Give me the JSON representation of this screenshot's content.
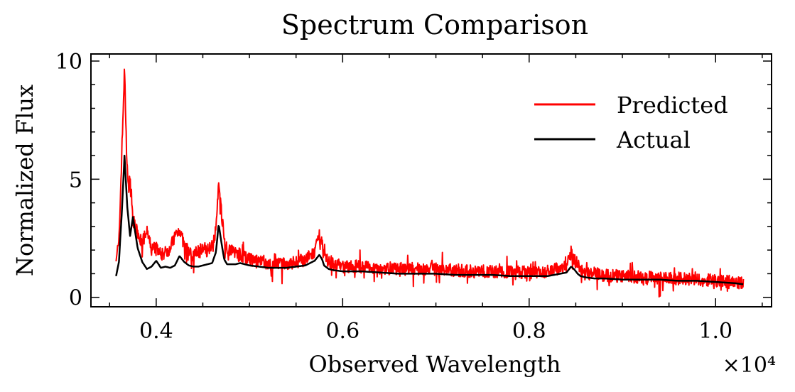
{
  "chart_data": {
    "type": "line",
    "title": "Spectrum Comparison",
    "xlabel": "Observed Wavelength",
    "ylabel": "Normalized Flux",
    "x_offset_label": "×10⁴",
    "xlim": [
      3300,
      10600
    ],
    "ylim": [
      -0.4,
      10.3
    ],
    "x_ticks": [
      4000,
      6000,
      8000,
      10000
    ],
    "x_tick_labels": [
      "0.4",
      "0.6",
      "0.8",
      "1.0"
    ],
    "y_ticks": [
      0,
      5,
      10
    ],
    "y_tick_labels": [
      "0",
      "5",
      "10"
    ],
    "grid": false,
    "legend": {
      "position": "top-right"
    },
    "series": [
      {
        "name": "Predicted",
        "color": "#ff0000",
        "x": [
          3570,
          3600,
          3630,
          3660,
          3680,
          3700,
          3720,
          3750,
          3800,
          3850,
          3900,
          3950,
          4000,
          4050,
          4100,
          4150,
          4200,
          4250,
          4300,
          4350,
          4400,
          4450,
          4500,
          4550,
          4600,
          4640,
          4670,
          4700,
          4730,
          4760,
          4800,
          4850,
          4900,
          4950,
          5000,
          5100,
          5200,
          5300,
          5400,
          5500,
          5600,
          5700,
          5750,
          5780,
          5800,
          5850,
          5900,
          6000,
          6200,
          6400,
          6600,
          6800,
          7000,
          7200,
          7400,
          7600,
          7800,
          8000,
          8200,
          8400,
          8450,
          8480,
          8520,
          8550,
          8600,
          8700,
          8800,
          9000,
          9200,
          9400,
          9600,
          9800,
          10000,
          10200,
          10300
        ],
        "y": [
          1.8,
          2.2,
          6.0,
          9.7,
          6.5,
          4.5,
          5.2,
          3.3,
          2.7,
          2.3,
          2.8,
          2.0,
          2.2,
          1.8,
          1.9,
          2.1,
          2.6,
          2.9,
          2.2,
          1.9,
          1.8,
          2.0,
          2.1,
          2.0,
          2.3,
          2.8,
          4.9,
          3.6,
          2.4,
          2.1,
          2.0,
          1.9,
          1.8,
          1.7,
          1.6,
          1.5,
          1.4,
          1.4,
          1.4,
          1.5,
          1.6,
          1.9,
          2.6,
          2.2,
          1.7,
          1.5,
          1.4,
          1.3,
          1.3,
          1.25,
          1.2,
          1.2,
          1.2,
          1.15,
          1.1,
          1.1,
          1.1,
          1.05,
          1.1,
          1.3,
          1.9,
          1.6,
          1.4,
          1.2,
          1.0,
          1.0,
          0.95,
          0.9,
          0.85,
          0.8,
          0.8,
          0.75,
          0.7,
          0.65,
          0.6
        ]
      },
      {
        "name": "Actual",
        "color": "#000000",
        "x": [
          3570,
          3600,
          3630,
          3660,
          3690,
          3720,
          3750,
          3800,
          3850,
          3900,
          3950,
          4000,
          4050,
          4100,
          4150,
          4200,
          4250,
          4300,
          4350,
          4400,
          4450,
          4500,
          4550,
          4600,
          4640,
          4670,
          4700,
          4730,
          4760,
          4800,
          4850,
          4900,
          4950,
          5000,
          5100,
          5200,
          5300,
          5400,
          5500,
          5600,
          5700,
          5750,
          5780,
          5800,
          5850,
          5900,
          6000,
          6200,
          6400,
          6600,
          6800,
          7000,
          7200,
          7400,
          7600,
          7800,
          8000,
          8200,
          8400,
          8450,
          8480,
          8520,
          8550,
          8600,
          8700,
          8800,
          9000,
          9200,
          9400,
          9600,
          9800,
          10000,
          10200,
          10300
        ],
        "y": [
          0.9,
          1.5,
          3.5,
          6.0,
          3.8,
          2.6,
          3.4,
          2.1,
          1.5,
          1.2,
          1.3,
          1.55,
          1.25,
          1.3,
          1.25,
          1.35,
          1.75,
          1.5,
          1.35,
          1.3,
          1.3,
          1.35,
          1.4,
          1.45,
          1.9,
          3.1,
          2.3,
          1.6,
          1.4,
          1.4,
          1.4,
          1.45,
          1.4,
          1.35,
          1.3,
          1.25,
          1.25,
          1.25,
          1.3,
          1.35,
          1.55,
          1.8,
          1.6,
          1.35,
          1.2,
          1.15,
          1.1,
          1.1,
          1.05,
          1.0,
          1.0,
          1.0,
          0.95,
          0.95,
          0.95,
          0.9,
          0.9,
          0.9,
          1.05,
          1.3,
          1.2,
          1.0,
          0.9,
          0.85,
          0.8,
          0.8,
          0.75,
          0.75,
          0.75,
          0.7,
          0.7,
          0.65,
          0.6,
          0.55
        ]
      }
    ]
  }
}
